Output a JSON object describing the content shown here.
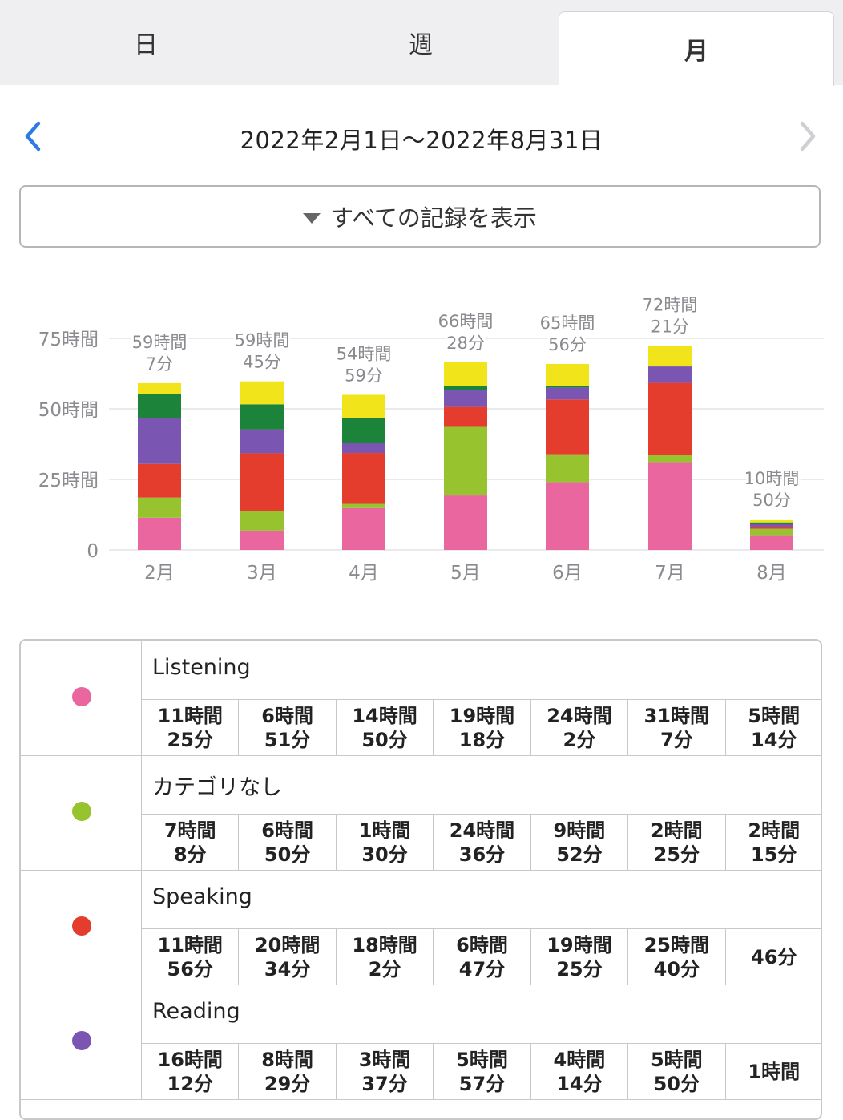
{
  "tabs": {
    "day": "日",
    "week": "週",
    "month": "月"
  },
  "nav": {
    "prev_icon": "chevron-left-icon",
    "next_icon": "chevron-right-icon",
    "date_range": "2022年2月1日〜2022年8月31日"
  },
  "filter": {
    "label": "すべての記録を表示",
    "icon": "triangle-down-icon"
  },
  "chart_data": {
    "type": "bar",
    "stacked": true,
    "categories": [
      "2月",
      "3月",
      "4月",
      "5月",
      "6月",
      "7月",
      "8月"
    ],
    "y_ticks": [
      "0",
      "25時間",
      "50時間",
      "75時間"
    ],
    "ylim": [
      0,
      75
    ],
    "totals_hours": [
      59.12,
      59.75,
      54.98,
      66.47,
      65.93,
      72.35,
      10.83
    ],
    "total_labels": [
      [
        "59時間",
        "7分"
      ],
      [
        "59時間",
        "45分"
      ],
      [
        "54時間",
        "59分"
      ],
      [
        "66時間",
        "28分"
      ],
      [
        "65時間",
        "56分"
      ],
      [
        "72時間",
        "21分"
      ],
      [
        "10時間",
        "50分"
      ]
    ],
    "series": [
      {
        "name": "Listening",
        "color": "#e9669f",
        "values": [
          11.42,
          6.85,
          14.83,
          19.3,
          24.03,
          31.12,
          5.23
        ]
      },
      {
        "name": "カテゴリなし",
        "color": "#96c32e",
        "values": [
          7.13,
          6.83,
          1.5,
          24.6,
          9.87,
          2.42,
          2.25
        ]
      },
      {
        "name": "Speaking",
        "color": "#e43d2e",
        "values": [
          11.93,
          20.57,
          18.03,
          6.78,
          19.42,
          25.67,
          0.77
        ]
      },
      {
        "name": "Reading",
        "color": "#7a55b1",
        "values": [
          16.2,
          8.48,
          3.62,
          5.95,
          4.23,
          5.83,
          1.0
        ]
      },
      {
        "name": "",
        "color": "#1b843a",
        "values": [
          8.44,
          8.89,
          8.9,
          1.5,
          0.5,
          0,
          0.5
        ]
      },
      {
        "name": "",
        "color": "#f2e41a",
        "values": [
          4.0,
          8.13,
          8.1,
          8.34,
          7.88,
          7.31,
          1.08
        ]
      }
    ]
  },
  "table": {
    "categories": [
      {
        "name": "Listening",
        "color": "#e9669f",
        "cells": [
          [
            "11時間",
            "25分"
          ],
          [
            "6時間",
            "51分"
          ],
          [
            "14時間",
            "50分"
          ],
          [
            "19時間",
            "18分"
          ],
          [
            "24時間",
            "2分"
          ],
          [
            "31時間",
            "7分"
          ],
          [
            "5時間",
            "14分"
          ]
        ]
      },
      {
        "name": "カテゴリなし",
        "color": "#96c32e",
        "cells": [
          [
            "7時間",
            "8分"
          ],
          [
            "6時間",
            "50分"
          ],
          [
            "1時間",
            "30分"
          ],
          [
            "24時間",
            "36分"
          ],
          [
            "9時間",
            "52分"
          ],
          [
            "2時間",
            "25分"
          ],
          [
            "2時間",
            "15分"
          ]
        ]
      },
      {
        "name": "Speaking",
        "color": "#e43d2e",
        "cells": [
          [
            "11時間",
            "56分"
          ],
          [
            "20時間",
            "34分"
          ],
          [
            "18時間",
            "2分"
          ],
          [
            "6時間",
            "47分"
          ],
          [
            "19時間",
            "25分"
          ],
          [
            "25時間",
            "40分"
          ],
          [
            "46分"
          ]
        ]
      },
      {
        "name": "Reading",
        "color": "#7a55b1",
        "cells": [
          [
            "16時間",
            "12分"
          ],
          [
            "8時間",
            "29分"
          ],
          [
            "3時間",
            "37分"
          ],
          [
            "5時間",
            "57分"
          ],
          [
            "4時間",
            "14分"
          ],
          [
            "5時間",
            "50分"
          ],
          [
            "1時間"
          ]
        ]
      }
    ]
  }
}
